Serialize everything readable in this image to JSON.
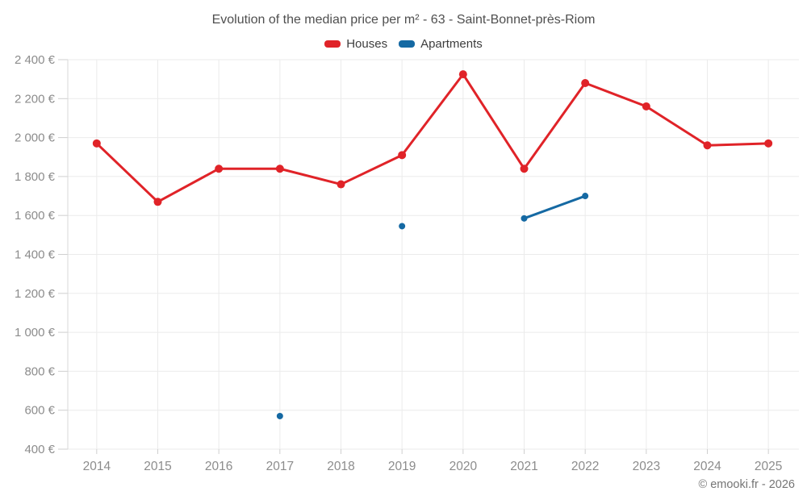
{
  "title": "Evolution of the median price per m² - 63 - Saint-Bonnet-près-Riom",
  "legend": [
    {
      "label": "Houses",
      "color": "#e02328"
    },
    {
      "label": "Apartments",
      "color": "#1569a3"
    }
  ],
  "footer": {
    "credit": "© emooki.fr - 2026"
  },
  "chart_data": {
    "type": "line",
    "title": "Evolution of the median price per m² - 63 - Saint-Bonnet-près-Riom",
    "categories": [
      "2014",
      "2015",
      "2016",
      "2017",
      "2018",
      "2019",
      "2020",
      "2021",
      "2022",
      "2023",
      "2024",
      "2025"
    ],
    "series": [
      {
        "name": "Houses",
        "color": "#e02328",
        "marker_radius": 5,
        "values": [
          1970,
          1670,
          1840,
          1840,
          1760,
          1910,
          2325,
          1840,
          2280,
          2160,
          1960,
          1970
        ]
      },
      {
        "name": "Apartments",
        "color": "#1569a3",
        "marker_radius": 4,
        "values": [
          null,
          null,
          null,
          570,
          null,
          1545,
          null,
          1585,
          1700,
          null,
          null,
          null
        ]
      }
    ],
    "xlabel": "",
    "ylabel": "",
    "ylim": [
      400,
      2400
    ],
    "ytick_step": 200,
    "yticks": [
      400,
      600,
      800,
      1000,
      1200,
      1400,
      1600,
      1800,
      2000,
      2200,
      2400
    ],
    "ytick_labels": [
      "400 €",
      "600 €",
      "800 €",
      "1 000 €",
      "1 200 €",
      "1 400 €",
      "1 600 €",
      "1 800 €",
      "2 000 €",
      "2 200 €",
      "2 400 €"
    ],
    "grid": true,
    "legend_position": "top",
    "colors": {
      "grid": "#ebebeb",
      "axis": "#d9d9d9",
      "tick": "#cfcfcf",
      "tick_label": "#8c8c8c"
    }
  }
}
